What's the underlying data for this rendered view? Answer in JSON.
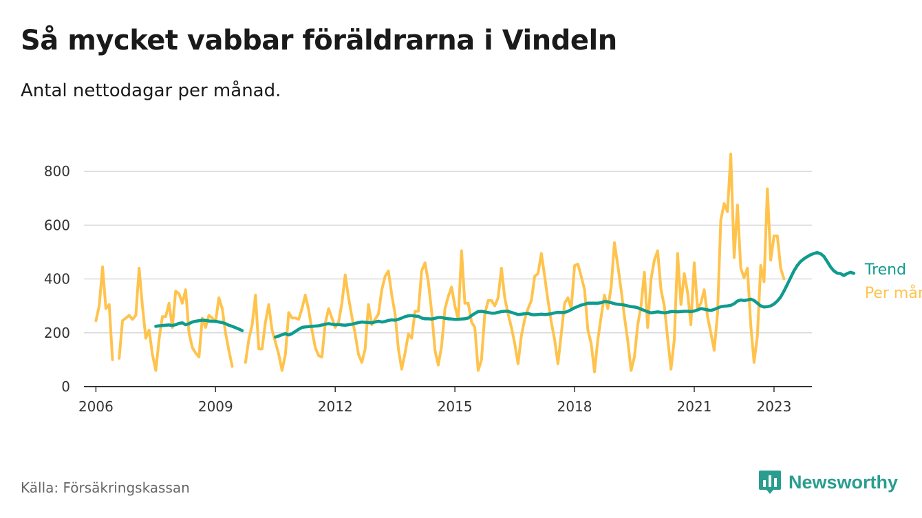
{
  "title": "Så mycket vabbar föräldrarna i Vindeln",
  "subtitle": "Antal nettodagar per månad.",
  "source": "Källa: Försäkringskassan",
  "brand": "Newsworthy",
  "colors": {
    "monthly": "#ffc34d",
    "trend": "#0f9b8e",
    "grid": "#d9d9d9",
    "axis": "#333333",
    "brand": "#2a9d8f"
  },
  "chart_data": {
    "type": "line",
    "title": "Så mycket vabbar föräldrarna i Vindeln",
    "subtitle": "Antal nettodagar per månad.",
    "xlabel": "",
    "ylabel": "",
    "xlim": [
      2005.7,
      2023.95
    ],
    "ylim": [
      0,
      900
    ],
    "yticks": [
      0,
      200,
      400,
      600,
      800
    ],
    "xticks": [
      2006,
      2009,
      2012,
      2015,
      2018,
      2021,
      2023
    ],
    "xtick_labels": [
      "2006",
      "2009",
      "2012",
      "2015",
      "2018",
      "2021",
      "2023"
    ],
    "grid": true,
    "legend": "direct labels at line ends",
    "series": [
      {
        "name": "Per månad",
        "segments": [
          {
            "start": "2006-01",
            "values": [
              245,
              300,
              445,
              290,
              305,
              100,
              null,
              105,
              245,
              255,
              265,
              250,
              265,
              440,
              300,
              180,
              210,
              120,
              60,
              175,
              260,
              260,
              310,
              220,
              355,
              345,
              310,
              360,
              200,
              145,
              125,
              110,
              255,
              220,
              265,
              255,
              240,
              330,
              290,
              200,
              135,
              75
            ]
          },
          {
            "start": "2009-10",
            "values": [
              90,
              175,
              230,
              340,
              140,
              140,
              240,
              305,
              210,
              165,
              120,
              60,
              120,
              275,
              255,
              255,
              250,
              290,
              340,
              285,
              210,
              145,
              115,
              110,
              235,
              290,
              255,
              220,
              240,
              310,
              415,
              330,
              260,
              195,
              120,
              90,
              140,
              305,
              230,
              250,
              270,
              360,
              410,
              430,
              340,
              270,
              140,
              65,
              125,
              195,
              180,
              280,
              280,
              430,
              460,
              390,
              280,
              135,
              80,
              150,
              290,
              335,
              370,
              300,
              250,
              505,
              310,
              310,
              240,
              220,
              60,
              100,
              270,
              320,
              320,
              300,
              330,
              440,
              330,
              270,
              220,
              160,
              85,
              190,
              250,
              290,
              320,
              410,
              420,
              495,
              410,
              320,
              240,
              175,
              85,
              195,
              310,
              330,
              290,
              450,
              455,
              410,
              360,
              210,
              160,
              55,
              175,
              260,
              340,
              290,
              370,
              535,
              450,
              360,
              260,
              170,
              60,
              110,
              230,
              300,
              425,
              220,
              400,
              470,
              505,
              360,
              300,
              180,
              65,
              175,
              495,
              305,
              420,
              350,
              230,
              460,
              290,
              310,
              360,
              260,
              200,
              135,
              270,
              620,
              680,
              650,
              865,
              480,
              675,
              440,
              405,
              440,
              230,
              90,
              190,
              450,
              390,
              735,
              470,
              560,
              560,
              440,
              400
            ]
          }
        ]
      },
      {
        "name": "Trend",
        "segments": [
          {
            "start": "2007-07",
            "values": [
              224,
              226,
              227,
              228,
              229,
              227,
              230,
              235,
              237,
              230,
              234,
              240,
              243,
              245,
              247,
              246,
              244,
              243,
              243,
              240,
              238,
              234,
              228,
              224,
              219,
              214,
              208
            ]
          },
          {
            "start": "2010-07",
            "values": [
              184,
              188,
              193,
              197,
              192,
              197,
              205,
              213,
              220,
              222,
              223,
              224,
              225,
              226,
              229,
              232,
              234,
              232,
              230,
              231,
              229,
              228,
              230,
              232,
              235,
              238,
              240,
              239,
              238,
              237,
              240,
              243,
              240,
              242,
              246,
              248,
              247,
              250,
              255,
              260,
              263,
              264,
              262,
              261,
              255,
              252,
              252,
              251,
              254,
              257,
              257,
              254,
              252,
              251,
              250,
              250,
              251,
              252,
              255,
              264,
              272,
              279,
              280,
              278,
              275,
              273,
              273,
              276,
              279,
              280,
              280,
              276,
              272,
              268,
              269,
              271,
              272,
              268,
              267,
              268,
              269,
              268,
              269,
              271,
              274,
              276,
              275,
              276,
              280,
              286,
              293,
              298,
              303,
              306,
              310,
              310,
              310,
              310,
              312,
              316,
              315,
              312,
              308,
              306,
              305,
              303,
              300,
              297,
              296,
              293,
              288,
              283,
              278,
              274,
              276,
              278,
              276,
              274,
              276,
              279,
              279,
              278,
              279,
              280,
              280,
              279,
              281,
              285,
              290,
              288,
              285,
              283,
              287,
              292,
              297,
              299,
              300,
              302,
              308,
              318,
              322,
              320,
              322,
              325,
              320,
              310,
              300,
              296,
              297,
              300,
              307,
              318,
              333,
              355,
              380,
              405,
              430,
              450,
              465,
              475,
              483,
              490,
              495,
              498,
              494,
              484,
              465,
              445,
              430,
              422,
              420,
              413,
              420,
              425,
              421
            ]
          }
        ]
      }
    ],
    "series_labels": {
      "trend": "Trend",
      "monthly": "Per månad"
    }
  }
}
